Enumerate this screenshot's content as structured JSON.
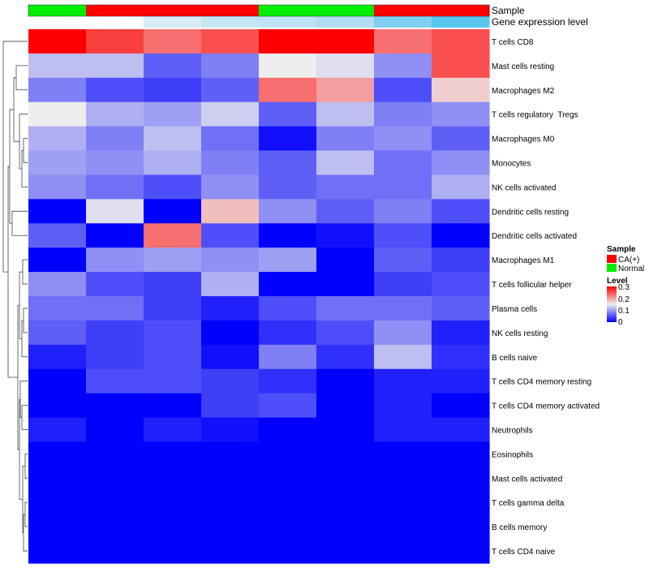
{
  "annotations": [
    {
      "label": "Sample",
      "values": [
        "Normal",
        "CA(+)",
        "CA(+)",
        "CA(+)",
        "Normal",
        "Normal",
        "CA(+)",
        "CA(+)"
      ]
    },
    {
      "label": "Gene expression level",
      "colors": [
        "#ffffff",
        "#ffffff",
        "#d8ecf7",
        "#c7e6f5",
        "#bfe2f4",
        "#b4ddf3",
        "#7fcff0",
        "#59c6ee"
      ]
    }
  ],
  "legend": {
    "sample_title": "Sample",
    "sample_items": [
      {
        "label": "CA(+)",
        "color": "#ff0000"
      },
      {
        "label": "Normal",
        "color": "#00ee00"
      }
    ],
    "level_title": "Level",
    "level_ticks": [
      "0.3",
      "0.2",
      "0.1",
      "0"
    ]
  },
  "colors": {
    "low": "#0000ff",
    "mid": "#eeeeee",
    "high": "#ff0000"
  },
  "chart_data": {
    "type": "heatmap",
    "rows": [
      "T cells CD8",
      "Mast cells resting",
      "Macrophages M2",
      "T cells regulatory  Tregs",
      "Macrophages M0",
      "Monocytes",
      "NK cells activated",
      "Dendritic cells resting",
      "Dendritic cells activated",
      "Macrophages M1",
      "T cells follicular helper",
      "Plasma cells",
      "NK cells resting",
      "B cells naive",
      "T cells CD4 memory resting",
      "T cells CD4 memory activated",
      "Neutrophils",
      "Eosinophils",
      "Mast cells activated",
      "T cells gamma delta",
      "B cells memory",
      "T cells CD4 naive"
    ],
    "column_groups": [
      "Normal",
      "CA(+)",
      "CA(+)",
      "CA(+)",
      "Normal",
      "Normal",
      "CA(+)",
      "CA(+)"
    ],
    "values": [
      [
        0.3,
        0.26,
        0.23,
        0.25,
        0.3,
        0.3,
        0.23,
        0.25
      ],
      [
        0.12,
        0.12,
        0.06,
        0.08,
        0.15,
        0.14,
        0.09,
        0.25
      ],
      [
        0.08,
        0.05,
        0.04,
        0.06,
        0.23,
        0.2,
        0.05,
        0.17
      ],
      [
        0.15,
        0.11,
        0.1,
        0.13,
        0.06,
        0.12,
        0.08,
        0.09
      ],
      [
        0.11,
        0.08,
        0.12,
        0.07,
        0.01,
        0.08,
        0.09,
        0.06
      ],
      [
        0.1,
        0.09,
        0.11,
        0.08,
        0.06,
        0.12,
        0.07,
        0.09
      ],
      [
        0.09,
        0.07,
        0.05,
        0.09,
        0.06,
        0.07,
        0.07,
        0.11
      ],
      [
        0.0,
        0.14,
        0.0,
        0.18,
        0.09,
        0.06,
        0.08,
        0.05
      ],
      [
        0.06,
        0.0,
        0.23,
        0.05,
        0.0,
        0.01,
        0.05,
        0.0
      ],
      [
        0.0,
        0.09,
        0.1,
        0.09,
        0.1,
        0.0,
        0.06,
        0.04
      ],
      [
        0.09,
        0.05,
        0.04,
        0.11,
        0.0,
        0.0,
        0.04,
        0.05
      ],
      [
        0.07,
        0.07,
        0.04,
        0.02,
        0.05,
        0.07,
        0.07,
        0.06
      ],
      [
        0.06,
        0.04,
        0.05,
        0.0,
        0.03,
        0.05,
        0.09,
        0.02
      ],
      [
        0.02,
        0.04,
        0.05,
        0.01,
        0.08,
        0.03,
        0.12,
        0.03
      ],
      [
        0.0,
        0.05,
        0.05,
        0.04,
        0.03,
        0.0,
        0.02,
        0.02
      ],
      [
        0.0,
        0.0,
        0.0,
        0.04,
        0.05,
        0.0,
        0.02,
        0.0
      ],
      [
        0.02,
        0.0,
        0.02,
        0.01,
        0.0,
        0.0,
        0.02,
        0.02
      ],
      [
        0.0,
        0.0,
        0.0,
        0.0,
        0.0,
        0.0,
        0.0,
        0.0
      ],
      [
        0.0,
        0.0,
        0.0,
        0.0,
        0.0,
        0.0,
        0.0,
        0.0
      ],
      [
        0.0,
        0.0,
        0.0,
        0.0,
        0.0,
        0.0,
        0.0,
        0.0
      ],
      [
        0.0,
        0.0,
        0.0,
        0.0,
        0.0,
        0.0,
        0.0,
        0.0
      ],
      [
        0.0,
        0.0,
        0.0,
        0.0,
        0.0,
        0.0,
        0.0,
        0.0
      ]
    ],
    "scale": {
      "min": 0,
      "max": 0.3
    },
    "row_dendrogram": "left"
  }
}
